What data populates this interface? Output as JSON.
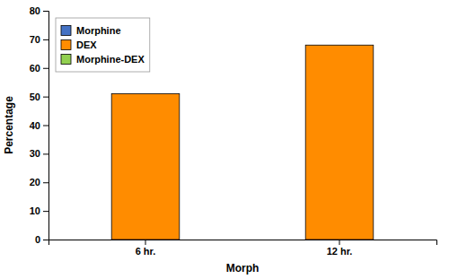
{
  "chart_data": {
    "type": "bar",
    "xlabel": "Morph",
    "ylabel": "Percentage",
    "categories": [
      "6 hr.",
      "12 hr."
    ],
    "series": [
      {
        "name": "Morphine",
        "color": "#4472C4",
        "values": [
          null,
          null
        ]
      },
      {
        "name": "DEX",
        "color": "#FF8C00",
        "values": [
          51.0,
          68.0
        ]
      },
      {
        "name": "Morphine-DEX",
        "color": "#92D050",
        "values": [
          null,
          null
        ]
      }
    ],
    "ylim": [
      0,
      80
    ],
    "yticks": [
      0,
      10,
      20,
      30,
      40,
      50,
      60,
      70,
      80
    ],
    "grid": false,
    "legend": "top-left"
  }
}
